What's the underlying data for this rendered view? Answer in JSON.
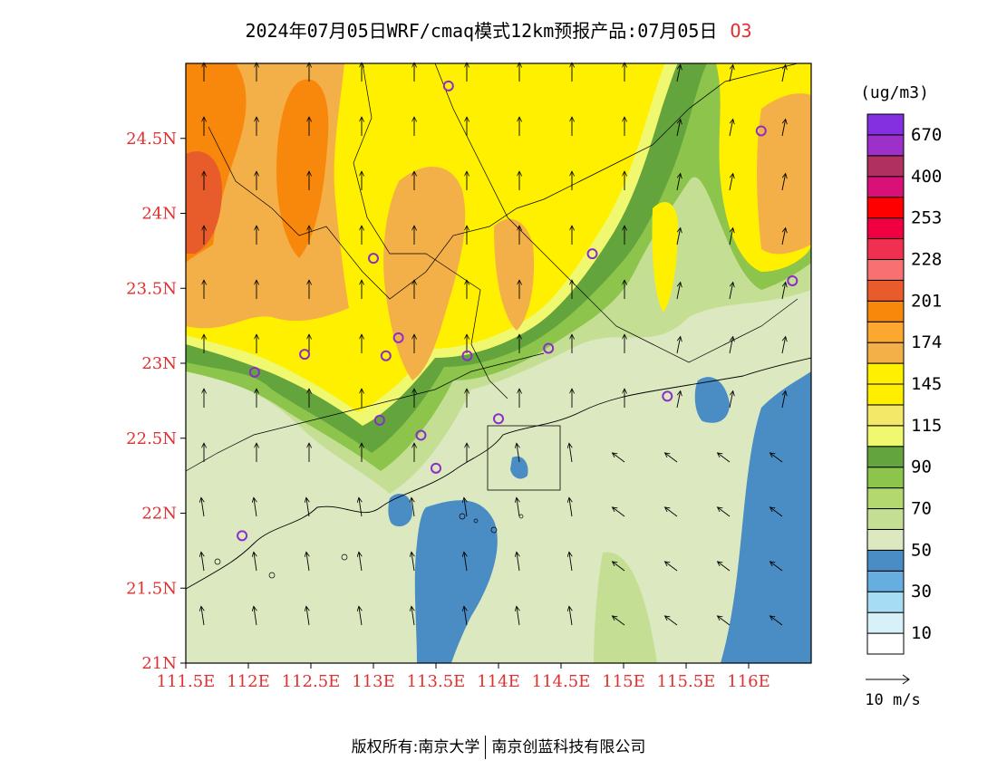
{
  "title": {
    "main": "2024年07月05日WRF/cmaq模式12km预报产品:07月05日",
    "species": "O3"
  },
  "map": {
    "lat_labels": [
      "24.5N",
      "24N",
      "23.5N",
      "23N",
      "22.5N",
      "22N",
      "21.5N",
      "21N"
    ],
    "lon_labels": [
      "111.5E",
      "112E",
      "112.5E",
      "113E",
      "113.5E",
      "114E",
      "114.5E",
      "115E",
      "115.5E",
      "116E"
    ],
    "lon_range": [
      111.5,
      116.5
    ],
    "lat_range": [
      21.0,
      25.0
    ],
    "label_color": "#e03030"
  },
  "legend": {
    "unit": "(ug/m3)",
    "colors": [
      "#ffffff",
      "#d8f0f8",
      "#a6dcf4",
      "#66aee0",
      "#4a8cc4",
      "#dce8c0",
      "#c4de94",
      "#b4d870",
      "#8cc44c",
      "#64a43c",
      "#f0f870",
      "#f4e868",
      "#ffee00",
      "#fff000",
      "#f4b048",
      "#fca830",
      "#f8880c",
      "#e85c2c",
      "#f87070",
      "#f03050",
      "#f00040",
      "#ff0000",
      "#d81078",
      "#b03060",
      "#9c30c8",
      "#8430e0"
    ],
    "labels": [
      "10",
      "30",
      "50",
      "70",
      "90",
      "115",
      "145",
      "174",
      "201",
      "228",
      "253",
      "400",
      "670"
    ]
  },
  "wind": {
    "label": "10 m/s"
  },
  "footer": {
    "left": "版权所有:南京大学",
    "right": "南京创蓝科技有限公司"
  }
}
